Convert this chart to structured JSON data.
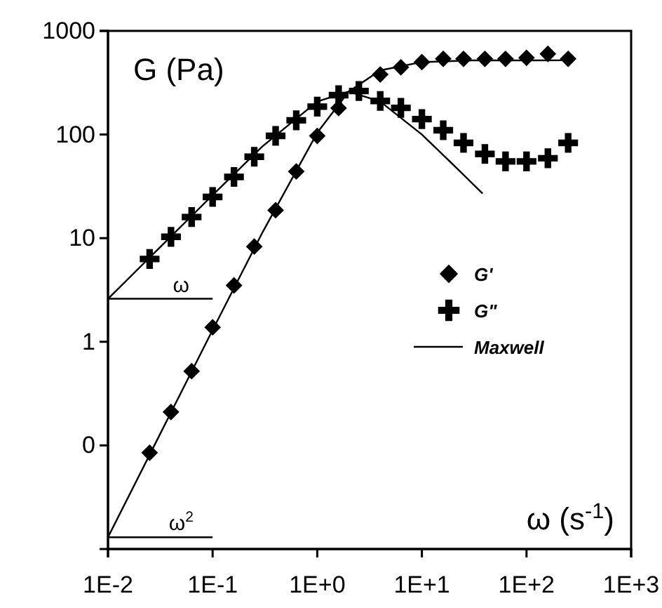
{
  "chart_data": {
    "type": "scatter",
    "xlabel": "ω (s$^{-1}$)",
    "ylabel": "G (Pa)",
    "log": "xy",
    "xlim": [
      0.01,
      1000
    ],
    "ylim": [
      0.01,
      1000
    ],
    "xticks": [
      {
        "value": 0.01,
        "label": "1E-2"
      },
      {
        "value": 0.1,
        "label": "1E-1"
      },
      {
        "value": 1,
        "label": "1E+0"
      },
      {
        "value": 10,
        "label": "1E+1"
      },
      {
        "value": 100,
        "label": "1E+2"
      },
      {
        "value": 1000,
        "label": "1E+3"
      }
    ],
    "yticks": [
      {
        "value": 0.1,
        "label": "0"
      },
      1,
      10,
      100,
      1000
    ],
    "grid": false,
    "legend": "right",
    "annotations": [
      {
        "text": "ω",
        "x": 0.05,
        "y": 2.6
      },
      {
        "text": "ω$^{2}$",
        "x": 0.05,
        "y": 0.013
      }
    ],
    "series": [
      {
        "name": "G'",
        "marker": "diamond",
        "color": "#000000",
        "x": [
          0.025,
          0.04,
          0.063,
          0.1,
          0.16,
          0.25,
          0.4,
          0.63,
          1,
          1.6,
          4,
          6.3,
          10,
          16,
          25,
          40,
          63,
          100,
          160,
          250
        ],
        "values": [
          0.085,
          0.21,
          0.52,
          1.38,
          3.5,
          8.3,
          18.6,
          44,
          97,
          180,
          380,
          446,
          500,
          537,
          537,
          537,
          537,
          550,
          600,
          537
        ]
      },
      {
        "name": "G\"",
        "marker": "cross",
        "color": "#000000",
        "x": [
          0.025,
          0.04,
          0.063,
          0.1,
          0.16,
          0.25,
          0.4,
          0.63,
          1,
          1.6,
          2.5,
          4,
          6.3,
          10,
          16,
          25,
          40,
          63,
          100,
          160,
          250
        ],
        "values": [
          6.3,
          10.3,
          16,
          25,
          39,
          61,
          97,
          137,
          186,
          240,
          263,
          211,
          181,
          141,
          110,
          83,
          65,
          55,
          55,
          59,
          83
        ]
      },
      {
        "name": "Maxwell",
        "type": "line",
        "marker": "none",
        "line_style": "solid",
        "color": "#000000",
        "x": [
          0.01,
          0.03,
          0.1,
          0.3,
          1,
          2,
          4,
          10,
          20,
          38
        ],
        "values": [
          2.6,
          7.8,
          26,
          77,
          208,
          260,
          208,
          100,
          51,
          27
        ]
      },
      {
        "type": "line",
        "marker": "none",
        "line_style": "solid",
        "color": "#000000",
        "x": [
          0.01,
          0.03,
          0.1,
          0.3,
          1,
          2,
          4,
          10,
          30,
          250
        ],
        "values": [
          0.013,
          0.117,
          1.3,
          11.4,
          104,
          260,
          416,
          500,
          519,
          520
        ]
      },
      {
        "type": "line",
        "marker": "none",
        "line_style": "solid",
        "color": "#000000",
        "x": [
          0.01,
          0.1
        ],
        "values": [
          2.6,
          2.6
        ]
      },
      {
        "type": "line",
        "marker": "none",
        "line_style": "solid",
        "color": "#000000",
        "x": [
          0.01,
          0.1
        ],
        "values": [
          0.013,
          0.013
        ]
      }
    ]
  }
}
